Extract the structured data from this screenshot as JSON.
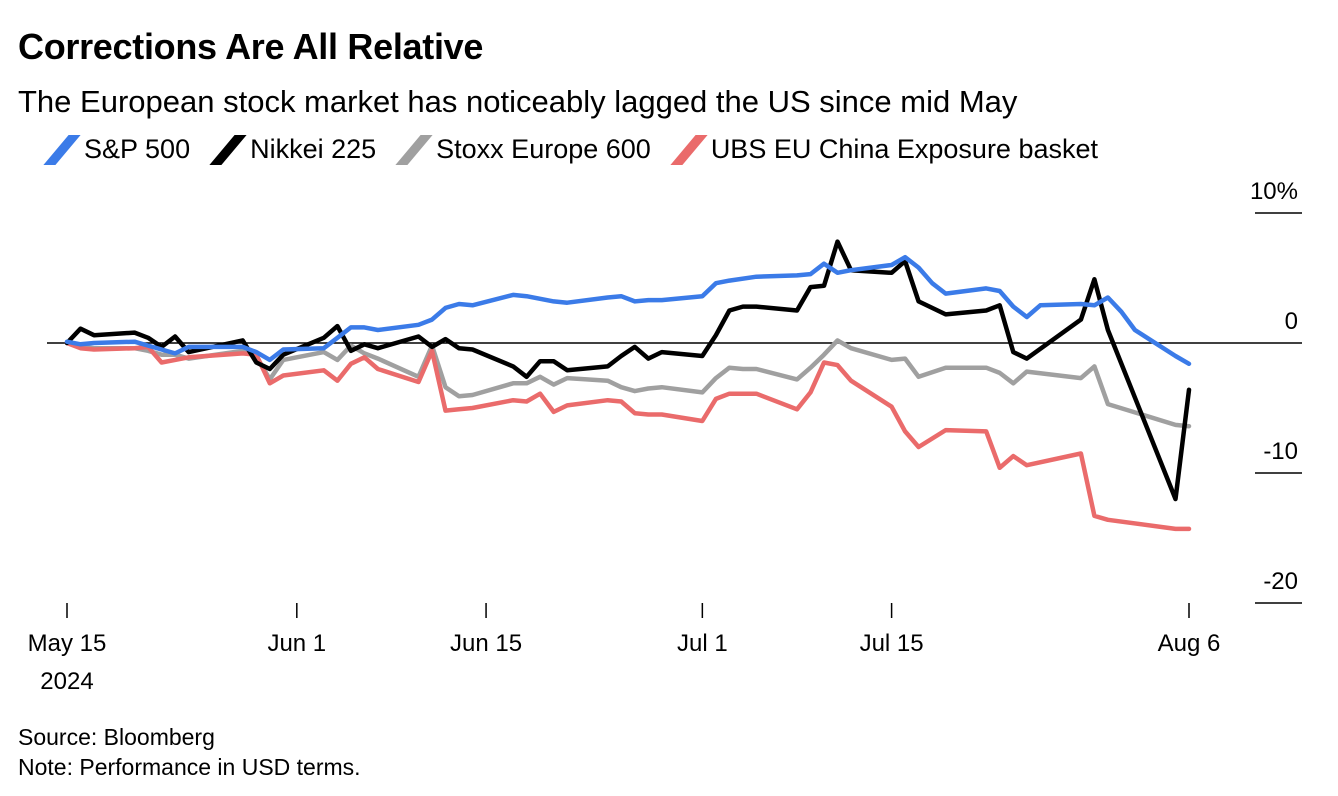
{
  "title": "Corrections Are All Relative",
  "subtitle": "The European stock market has noticeably lagged the US since mid May",
  "source": "Source: Bloomberg",
  "note": "Note: Performance in USD terms.",
  "chart_data": {
    "type": "line",
    "title": "Corrections Are All Relative",
    "subtitle": "The European stock market has noticeably lagged the US since mid May",
    "xlabel": "",
    "ylabel": "",
    "x_tick_labels": [
      "May 15\n2024",
      "Jun 1",
      "Jun 15",
      "Jul 1",
      "Jul 15",
      "Aug 6"
    ],
    "x_tick_dates": [
      "2024-05-15",
      "2024-06-01",
      "2024-06-15",
      "2024-07-01",
      "2024-07-15",
      "2024-08-06"
    ],
    "y_tick_labels": [
      "10%",
      "0",
      "-10",
      "-20"
    ],
    "y_ticks": [
      10,
      0,
      -10,
      -20
    ],
    "ylim": [
      -20,
      10
    ],
    "xlim": [
      "2024-05-15",
      "2024-08-06"
    ],
    "grid": false,
    "legend_position": "top",
    "baseline": 0,
    "series": [
      {
        "name": "S&P 500",
        "color": "#3b7be8",
        "dates": [
          "2024-05-15",
          "2024-05-16",
          "2024-05-17",
          "2024-05-20",
          "2024-05-21",
          "2024-05-22",
          "2024-05-23",
          "2024-05-24",
          "2024-05-28",
          "2024-05-29",
          "2024-05-30",
          "2024-05-31",
          "2024-06-03",
          "2024-06-04",
          "2024-06-05",
          "2024-06-06",
          "2024-06-07",
          "2024-06-10",
          "2024-06-11",
          "2024-06-12",
          "2024-06-13",
          "2024-06-14",
          "2024-06-17",
          "2024-06-18",
          "2024-06-20",
          "2024-06-21",
          "2024-06-24",
          "2024-06-25",
          "2024-06-26",
          "2024-06-27",
          "2024-06-28",
          "2024-07-01",
          "2024-07-02",
          "2024-07-03",
          "2024-07-05",
          "2024-07-08",
          "2024-07-09",
          "2024-07-10",
          "2024-07-11",
          "2024-07-12",
          "2024-07-15",
          "2024-07-16",
          "2024-07-17",
          "2024-07-18",
          "2024-07-19",
          "2024-07-22",
          "2024-07-23",
          "2024-07-24",
          "2024-07-25",
          "2024-07-26",
          "2024-07-29",
          "2024-07-30",
          "2024-07-31",
          "2024-08-01",
          "2024-08-02",
          "2024-08-05",
          "2024-08-06"
        ],
        "values": [
          0.1,
          -0.1,
          0.0,
          0.1,
          -0.2,
          -0.5,
          -0.8,
          -0.3,
          -0.3,
          -0.7,
          -1.3,
          -0.5,
          -0.4,
          0.4,
          1.2,
          1.2,
          1.0,
          1.4,
          1.8,
          2.7,
          3.0,
          2.9,
          3.7,
          3.6,
          3.2,
          3.1,
          3.5,
          3.6,
          3.2,
          3.3,
          3.3,
          3.6,
          4.6,
          4.8,
          5.1,
          5.2,
          5.3,
          6.1,
          5.4,
          5.6,
          6.0,
          6.6,
          5.8,
          4.6,
          3.8,
          4.2,
          4.0,
          2.8,
          2.0,
          2.9,
          3.0,
          2.9,
          3.5,
          2.4,
          1.0,
          -1.0,
          -1.6
        ],
        "note": "Values shown are for trading days; approximate chart reading."
      },
      {
        "name": "Nikkei 225",
        "color": "#000000",
        "values_by_date": [
          [
            "2024-05-15",
            0.0
          ],
          [
            "2024-05-16",
            1.1
          ],
          [
            "2024-05-17",
            0.6
          ],
          [
            "2024-05-20",
            0.8
          ],
          [
            "2024-05-21",
            0.4
          ],
          [
            "2024-05-22",
            -0.3
          ],
          [
            "2024-05-23",
            0.5
          ],
          [
            "2024-05-24",
            -0.7
          ],
          [
            "2024-05-28",
            0.2
          ],
          [
            "2024-05-29",
            -1.5
          ],
          [
            "2024-05-30",
            -2.0
          ],
          [
            "2024-05-31",
            -0.9
          ],
          [
            "2024-06-03",
            0.4
          ],
          [
            "2024-06-04",
            1.3
          ],
          [
            "2024-06-05",
            -0.6
          ],
          [
            "2024-06-06",
            -0.1
          ],
          [
            "2024-06-07",
            -0.4
          ],
          [
            "2024-06-10",
            0.5
          ],
          [
            "2024-06-11",
            -0.3
          ],
          [
            "2024-06-12",
            0.3
          ],
          [
            "2024-06-13",
            -0.4
          ],
          [
            "2024-06-14",
            -0.5
          ],
          [
            "2024-06-17",
            -1.8
          ],
          [
            "2024-06-18",
            -2.6
          ],
          [
            "2024-06-19",
            -1.4
          ],
          [
            "2024-06-20",
            -1.4
          ],
          [
            "2024-06-21",
            -2.1
          ],
          [
            "2024-06-24",
            -1.8
          ],
          [
            "2024-06-25",
            -1.0
          ],
          [
            "2024-06-26",
            -0.3
          ],
          [
            "2024-06-27",
            -1.2
          ],
          [
            "2024-06-28",
            -0.7
          ],
          [
            "2024-07-01",
            -1.0
          ],
          [
            "2024-07-02",
            0.6
          ],
          [
            "2024-07-03",
            2.5
          ],
          [
            "2024-07-04",
            2.8
          ],
          [
            "2024-07-05",
            2.8
          ],
          [
            "2024-07-08",
            2.5
          ],
          [
            "2024-07-09",
            4.3
          ],
          [
            "2024-07-10",
            4.4
          ],
          [
            "2024-07-11",
            7.8
          ],
          [
            "2024-07-12",
            5.6
          ],
          [
            "2024-07-15",
            5.4
          ],
          [
            "2024-07-16",
            6.3
          ],
          [
            "2024-07-17",
            3.2
          ],
          [
            "2024-07-19",
            2.2
          ],
          [
            "2024-07-22",
            2.5
          ],
          [
            "2024-07-23",
            2.9
          ],
          [
            "2024-07-24",
            -0.7
          ],
          [
            "2024-07-25",
            -1.2
          ],
          [
            "2024-07-29",
            1.8
          ],
          [
            "2024-07-30",
            4.9
          ],
          [
            "2024-07-31",
            1.0
          ],
          [
            "2024-08-05",
            -12.0
          ],
          [
            "2024-08-06",
            -3.6
          ]
        ]
      },
      {
        "name": "Stoxx Europe 600",
        "color": "#a0a0a0",
        "values_by_date": [
          [
            "2024-05-15",
            0.0
          ],
          [
            "2024-05-16",
            -0.3
          ],
          [
            "2024-05-17",
            -0.4
          ],
          [
            "2024-05-20",
            -0.4
          ],
          [
            "2024-05-21",
            -0.6
          ],
          [
            "2024-05-22",
            -0.9
          ],
          [
            "2024-05-23",
            -0.9
          ],
          [
            "2024-05-24",
            -1.2
          ],
          [
            "2024-05-28",
            -0.6
          ],
          [
            "2024-05-29",
            -1.0
          ],
          [
            "2024-05-30",
            -2.8
          ],
          [
            "2024-05-31",
            -1.3
          ],
          [
            "2024-06-03",
            -0.7
          ],
          [
            "2024-06-04",
            -1.3
          ],
          [
            "2024-06-05",
            -0.2
          ],
          [
            "2024-06-06",
            -0.8
          ],
          [
            "2024-06-07",
            -1.2
          ],
          [
            "2024-06-10",
            -2.6
          ],
          [
            "2024-06-11",
            -0.2
          ],
          [
            "2024-06-12",
            -3.4
          ],
          [
            "2024-06-13",
            -4.1
          ],
          [
            "2024-06-14",
            -4.0
          ],
          [
            "2024-06-17",
            -3.1
          ],
          [
            "2024-06-18",
            -3.1
          ],
          [
            "2024-06-19",
            -2.6
          ],
          [
            "2024-06-20",
            -3.2
          ],
          [
            "2024-06-21",
            -2.7
          ],
          [
            "2024-06-24",
            -2.9
          ],
          [
            "2024-06-25",
            -3.4
          ],
          [
            "2024-06-26",
            -3.7
          ],
          [
            "2024-06-27",
            -3.5
          ],
          [
            "2024-06-28",
            -3.4
          ],
          [
            "2024-07-01",
            -3.8
          ],
          [
            "2024-07-02",
            -2.7
          ],
          [
            "2024-07-03",
            -1.9
          ],
          [
            "2024-07-04",
            -2.0
          ],
          [
            "2024-07-05",
            -2.0
          ],
          [
            "2024-07-08",
            -2.8
          ],
          [
            "2024-07-09",
            -1.9
          ],
          [
            "2024-07-10",
            -0.9
          ],
          [
            "2024-07-11",
            0.2
          ],
          [
            "2024-07-12",
            -0.4
          ],
          [
            "2024-07-15",
            -1.3
          ],
          [
            "2024-07-16",
            -1.2
          ],
          [
            "2024-07-17",
            -2.6
          ],
          [
            "2024-07-19",
            -1.9
          ],
          [
            "2024-07-22",
            -1.9
          ],
          [
            "2024-07-23",
            -2.3
          ],
          [
            "2024-07-24",
            -3.1
          ],
          [
            "2024-07-25",
            -2.2
          ],
          [
            "2024-07-29",
            -2.7
          ],
          [
            "2024-07-30",
            -1.8
          ],
          [
            "2024-07-31",
            -4.7
          ],
          [
            "2024-08-05",
            -6.3
          ],
          [
            "2024-08-06",
            -6.4
          ]
        ]
      },
      {
        "name": "UBS EU China Exposure basket",
        "color": "#ea6b6b",
        "values_by_date": [
          [
            "2024-05-15",
            0.0
          ],
          [
            "2024-05-16",
            -0.4
          ],
          [
            "2024-05-17",
            -0.5
          ],
          [
            "2024-05-20",
            -0.4
          ],
          [
            "2024-05-21",
            -0.3
          ],
          [
            "2024-05-22",
            -1.5
          ],
          [
            "2024-05-23",
            -1.3
          ],
          [
            "2024-05-24",
            -1.1
          ],
          [
            "2024-05-28",
            -0.8
          ],
          [
            "2024-05-29",
            -0.9
          ],
          [
            "2024-05-30",
            -3.1
          ],
          [
            "2024-05-31",
            -2.5
          ],
          [
            "2024-06-03",
            -2.1
          ],
          [
            "2024-06-04",
            -2.9
          ],
          [
            "2024-06-05",
            -1.6
          ],
          [
            "2024-06-06",
            -1.1
          ],
          [
            "2024-06-07",
            -2.0
          ],
          [
            "2024-06-10",
            -3.0
          ],
          [
            "2024-06-11",
            -0.6
          ],
          [
            "2024-06-12",
            -5.2
          ],
          [
            "2024-06-13",
            -5.1
          ],
          [
            "2024-06-14",
            -5.0
          ],
          [
            "2024-06-17",
            -4.4
          ],
          [
            "2024-06-18",
            -4.5
          ],
          [
            "2024-06-19",
            -3.9
          ],
          [
            "2024-06-20",
            -5.3
          ],
          [
            "2024-06-21",
            -4.8
          ],
          [
            "2024-06-24",
            -4.4
          ],
          [
            "2024-06-25",
            -4.5
          ],
          [
            "2024-06-26",
            -5.4
          ],
          [
            "2024-06-27",
            -5.5
          ],
          [
            "2024-06-28",
            -5.5
          ],
          [
            "2024-07-01",
            -6.0
          ],
          [
            "2024-07-02",
            -4.3
          ],
          [
            "2024-07-03",
            -3.9
          ],
          [
            "2024-07-04",
            -3.9
          ],
          [
            "2024-07-05",
            -3.9
          ],
          [
            "2024-07-08",
            -5.1
          ],
          [
            "2024-07-09",
            -3.8
          ],
          [
            "2024-07-10",
            -1.5
          ],
          [
            "2024-07-11",
            -1.7
          ],
          [
            "2024-07-12",
            -2.9
          ],
          [
            "2024-07-15",
            -4.9
          ],
          [
            "2024-07-16",
            -6.8
          ],
          [
            "2024-07-17",
            -8.0
          ],
          [
            "2024-07-19",
            -6.7
          ],
          [
            "2024-07-22",
            -6.8
          ],
          [
            "2024-07-23",
            -9.6
          ],
          [
            "2024-07-24",
            -8.7
          ],
          [
            "2024-07-25",
            -9.4
          ],
          [
            "2024-07-29",
            -8.5
          ],
          [
            "2024-07-30",
            -13.3
          ],
          [
            "2024-07-31",
            -13.6
          ],
          [
            "2024-08-05",
            -14.3
          ],
          [
            "2024-08-06",
            -14.3
          ]
        ]
      }
    ]
  }
}
